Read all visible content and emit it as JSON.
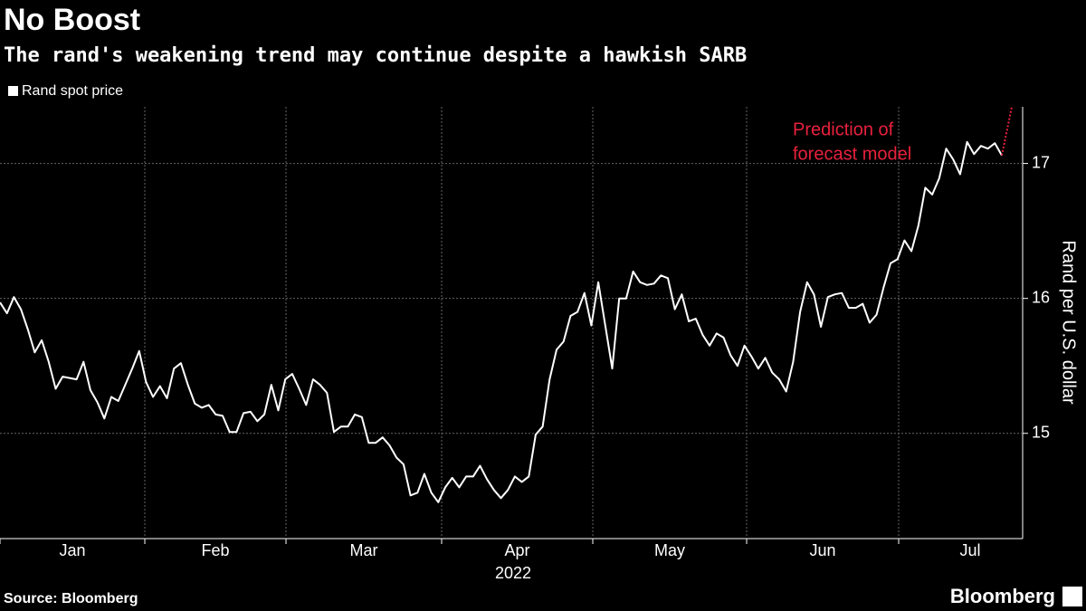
{
  "chart_data": {
    "type": "line",
    "title": "No Boost",
    "subtitle": "The rand's weakening trend may continue despite a hawkish SARB",
    "y_axis_label": "Rand per U.S. dollar",
    "month_labels": [
      "Jan",
      "Feb",
      "Mar",
      "Apr",
      "May",
      "Jun",
      "Jul"
    ],
    "year_label": "2022",
    "annotation": [
      "Prediction of",
      "forecast model"
    ],
    "source": "Source: Bloomberg",
    "logo": "Bloomberg",
    "ylim": [
      14.22,
      17.42
    ],
    "yticks": [
      15,
      16,
      17
    ],
    "grid": true,
    "series": [
      {
        "name": "Rand spot price",
        "color": "#ffffff",
        "values": [
          15.97,
          15.89,
          16.01,
          15.92,
          15.77,
          15.6,
          15.69,
          15.53,
          15.33,
          15.42,
          15.41,
          15.4,
          15.53,
          15.32,
          15.23,
          15.11,
          15.27,
          15.24,
          15.36,
          15.48,
          15.61,
          15.38,
          15.27,
          15.35,
          15.26,
          15.48,
          15.52,
          15.36,
          15.22,
          15.19,
          15.21,
          15.14,
          15.13,
          15.01,
          15.01,
          15.15,
          15.16,
          15.09,
          15.14,
          15.36,
          15.17,
          15.4,
          15.44,
          15.33,
          15.21,
          15.4,
          15.36,
          15.3,
          15.01,
          15.05,
          15.05,
          15.14,
          15.12,
          14.93,
          14.93,
          14.97,
          14.91,
          14.82,
          14.77,
          14.54,
          14.56,
          14.7,
          14.56,
          14.49,
          14.6,
          14.67,
          14.6,
          14.68,
          14.68,
          14.76,
          14.66,
          14.58,
          14.52,
          14.58,
          14.68,
          14.64,
          14.68,
          14.99,
          15.05,
          15.4,
          15.62,
          15.68,
          15.87,
          15.9,
          16.04,
          15.8,
          16.12,
          15.8,
          15.48,
          16.0,
          16.0,
          16.2,
          16.12,
          16.1,
          16.11,
          16.17,
          16.15,
          15.92,
          16.03,
          15.83,
          15.85,
          15.73,
          15.65,
          15.74,
          15.71,
          15.58,
          15.5,
          15.65,
          15.57,
          15.48,
          15.56,
          15.45,
          15.4,
          15.31,
          15.53,
          15.9,
          16.12,
          16.03,
          15.79,
          16.01,
          16.03,
          16.04,
          15.93,
          15.93,
          15.96,
          15.82,
          15.88,
          16.08,
          16.26,
          16.29,
          16.43,
          16.35,
          16.54,
          16.82,
          16.77,
          16.89,
          17.11,
          17.03,
          16.92,
          17.16,
          17.07,
          17.13,
          17.11,
          17.15,
          17.06
        ]
      },
      {
        "color": "#e8213c",
        "style": "dotted",
        "values": [
          17.06,
          17.42
        ]
      }
    ]
  }
}
